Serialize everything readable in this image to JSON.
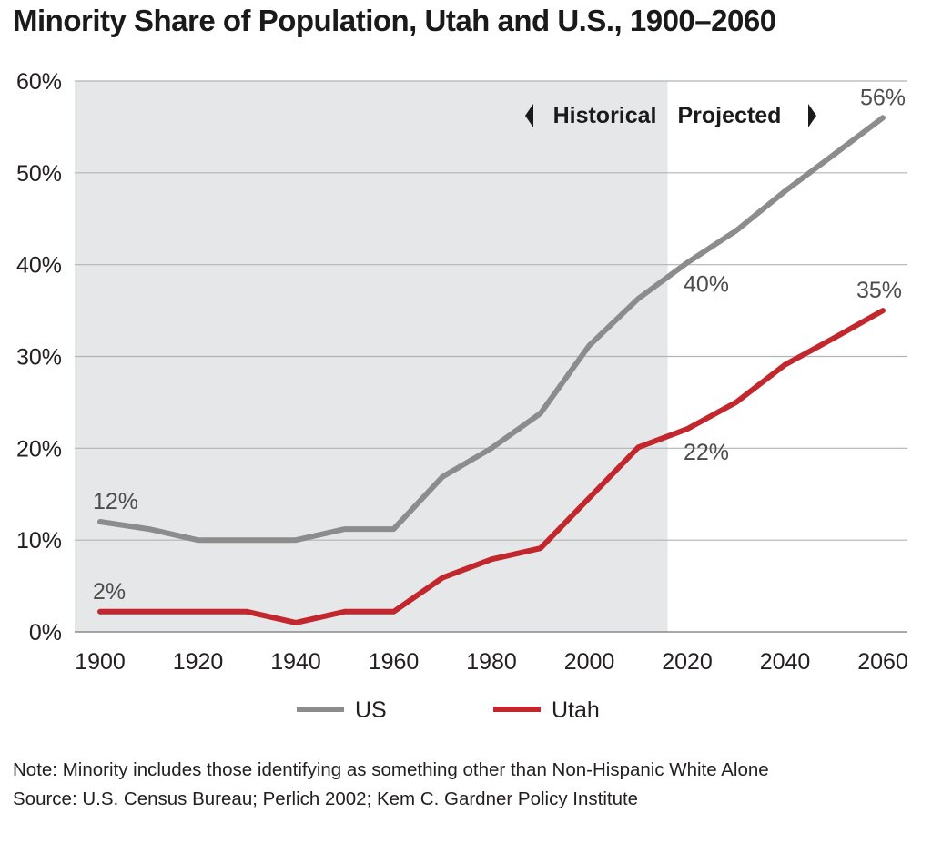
{
  "title": "Minority Share of Population, Utah and U.S., 1900–2060",
  "note": "Note: Minority includes those identifying as something other than Non-Hispanic White Alone",
  "source": "Source: U.S. Census Bureau; Perlich 2002; Kem C. Gardner Policy Institute",
  "chart_data": {
    "type": "line",
    "title": "Minority Share of Population, Utah and U.S., 1900–2060",
    "xlabel": "",
    "ylabel": "",
    "x_ticks": [
      "1900",
      "1920",
      "1940",
      "1960",
      "1980",
      "2000",
      "2020",
      "2040",
      "2060"
    ],
    "y_ticks": [
      "0%",
      "10%",
      "20%",
      "30%",
      "40%",
      "50%",
      "60%"
    ],
    "xlim": [
      1900,
      2060
    ],
    "ylim": [
      0,
      60
    ],
    "grid": true,
    "legend_position": "bottom",
    "historical_end": 2016,
    "shaded_region_label_left": "Historical",
    "shaded_region_label_right": "Projected",
    "series": [
      {
        "name": "US",
        "color": "#8c8c8c",
        "x": [
          1900,
          1910,
          1920,
          1930,
          1940,
          1950,
          1960,
          1970,
          1980,
          1990,
          2000,
          2010,
          2020,
          2030,
          2040,
          2050,
          2060
        ],
        "y": [
          12,
          11.2,
          10,
          10,
          10,
          11.2,
          11.2,
          16.9,
          20,
          23.8,
          31.2,
          36.3,
          40.2,
          43.7,
          48,
          52,
          56
        ]
      },
      {
        "name": "Utah",
        "color": "#c1272d",
        "x": [
          1900,
          1910,
          1920,
          1930,
          1940,
          1950,
          1960,
          1970,
          1980,
          1990,
          2000,
          2010,
          2020,
          2030,
          2040,
          2050,
          2060
        ],
        "y": [
          2.2,
          2.2,
          2.2,
          2.2,
          1,
          2.2,
          2.2,
          5.9,
          7.9,
          9.1,
          14.6,
          20.1,
          22.1,
          25,
          29.1,
          32,
          35
        ]
      }
    ],
    "annotations": [
      {
        "text": "12%",
        "x": 1900,
        "y": 12,
        "series": "US"
      },
      {
        "text": "2%",
        "x": 1900,
        "y": 2.2,
        "series": "Utah"
      },
      {
        "text": "40%",
        "x": 2020,
        "y": 40.2,
        "series": "US"
      },
      {
        "text": "22%",
        "x": 2020,
        "y": 22.1,
        "series": "Utah"
      },
      {
        "text": "56%",
        "x": 2060,
        "y": 56,
        "series": "US"
      },
      {
        "text": "35%",
        "x": 2060,
        "y": 35,
        "series": "Utah"
      }
    ]
  }
}
